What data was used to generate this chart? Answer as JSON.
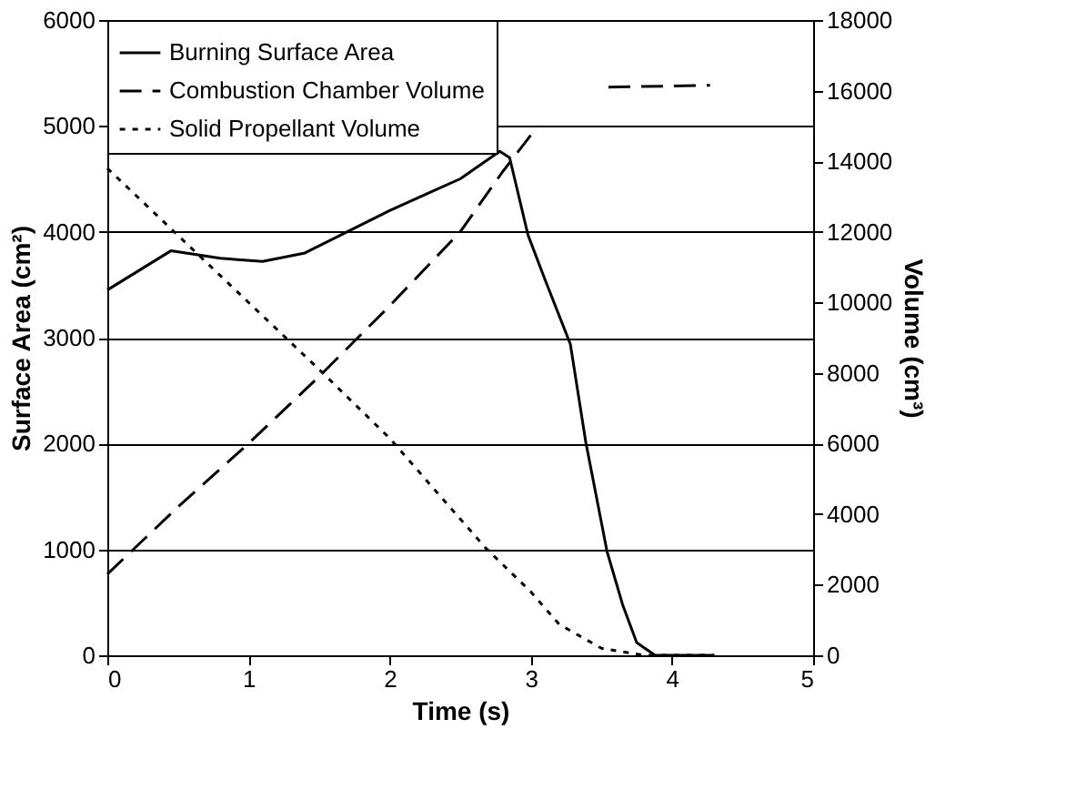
{
  "chart_data": {
    "type": "line",
    "xlabel": "Time (s)",
    "ylabel": "Surface Area (cm²)",
    "y2label": "Volume (cm³)",
    "xlim": [
      0,
      5
    ],
    "xticks": [
      0,
      1,
      2,
      3,
      4,
      5
    ],
    "ylim": [
      0,
      6000
    ],
    "yticks": [
      0,
      1000,
      2000,
      3000,
      4000,
      5000,
      6000
    ],
    "y2lim": [
      0,
      18000
    ],
    "y2ticks": [
      0,
      2000,
      4000,
      6000,
      8000,
      10000,
      12000,
      14000,
      16000,
      18000
    ],
    "grid": "y",
    "legend": "top left",
    "marker": "none",
    "series": [
      {
        "name": "Burning Surface Area",
        "color": "#000000",
        "line_style": "solid",
        "x": [
          0,
          0.45,
          0.6,
          0.8,
          1.1,
          1.4,
          1.7,
          2.0,
          2.3,
          2.5,
          2.78,
          2.85,
          2.98,
          3.1,
          3.28,
          3.39,
          3.54,
          3.65,
          3.75,
          3.88,
          4.0,
          4.3
        ],
        "values": [
          3450,
          3820,
          3790,
          3750,
          3720,
          3800,
          4000,
          4200,
          4380,
          4500,
          4760,
          4700,
          3970,
          3550,
          2940,
          2010,
          980,
          480,
          120,
          0,
          0,
          0
        ]
      },
      {
        "name": "Combustion Chamber Volume",
        "color": "#000000",
        "line_style": "dashed",
        "axis": "y2",
        "x": [
          0,
          0.5,
          1,
          1.5,
          2,
          2.5,
          2.8,
          3.05,
          3.3,
          3.55,
          4.27
        ],
        "values": [
          2300,
          4200,
          6000,
          7900,
          9900,
          12000,
          13700,
          15000,
          null,
          16100,
          16150
        ]
      },
      {
        "name": "Solid Propellant Volume",
        "color": "#000000",
        "line_style": "dotted",
        "axis": "y2",
        "x": [
          0,
          0.5,
          1,
          1.5,
          2,
          2.68,
          3.0,
          3.2,
          3.5,
          3.8,
          4.3
        ],
        "values": [
          13800,
          11900,
          10000,
          8100,
          6150,
          3040,
          1800,
          880,
          200,
          0,
          0
        ]
      }
    ]
  }
}
